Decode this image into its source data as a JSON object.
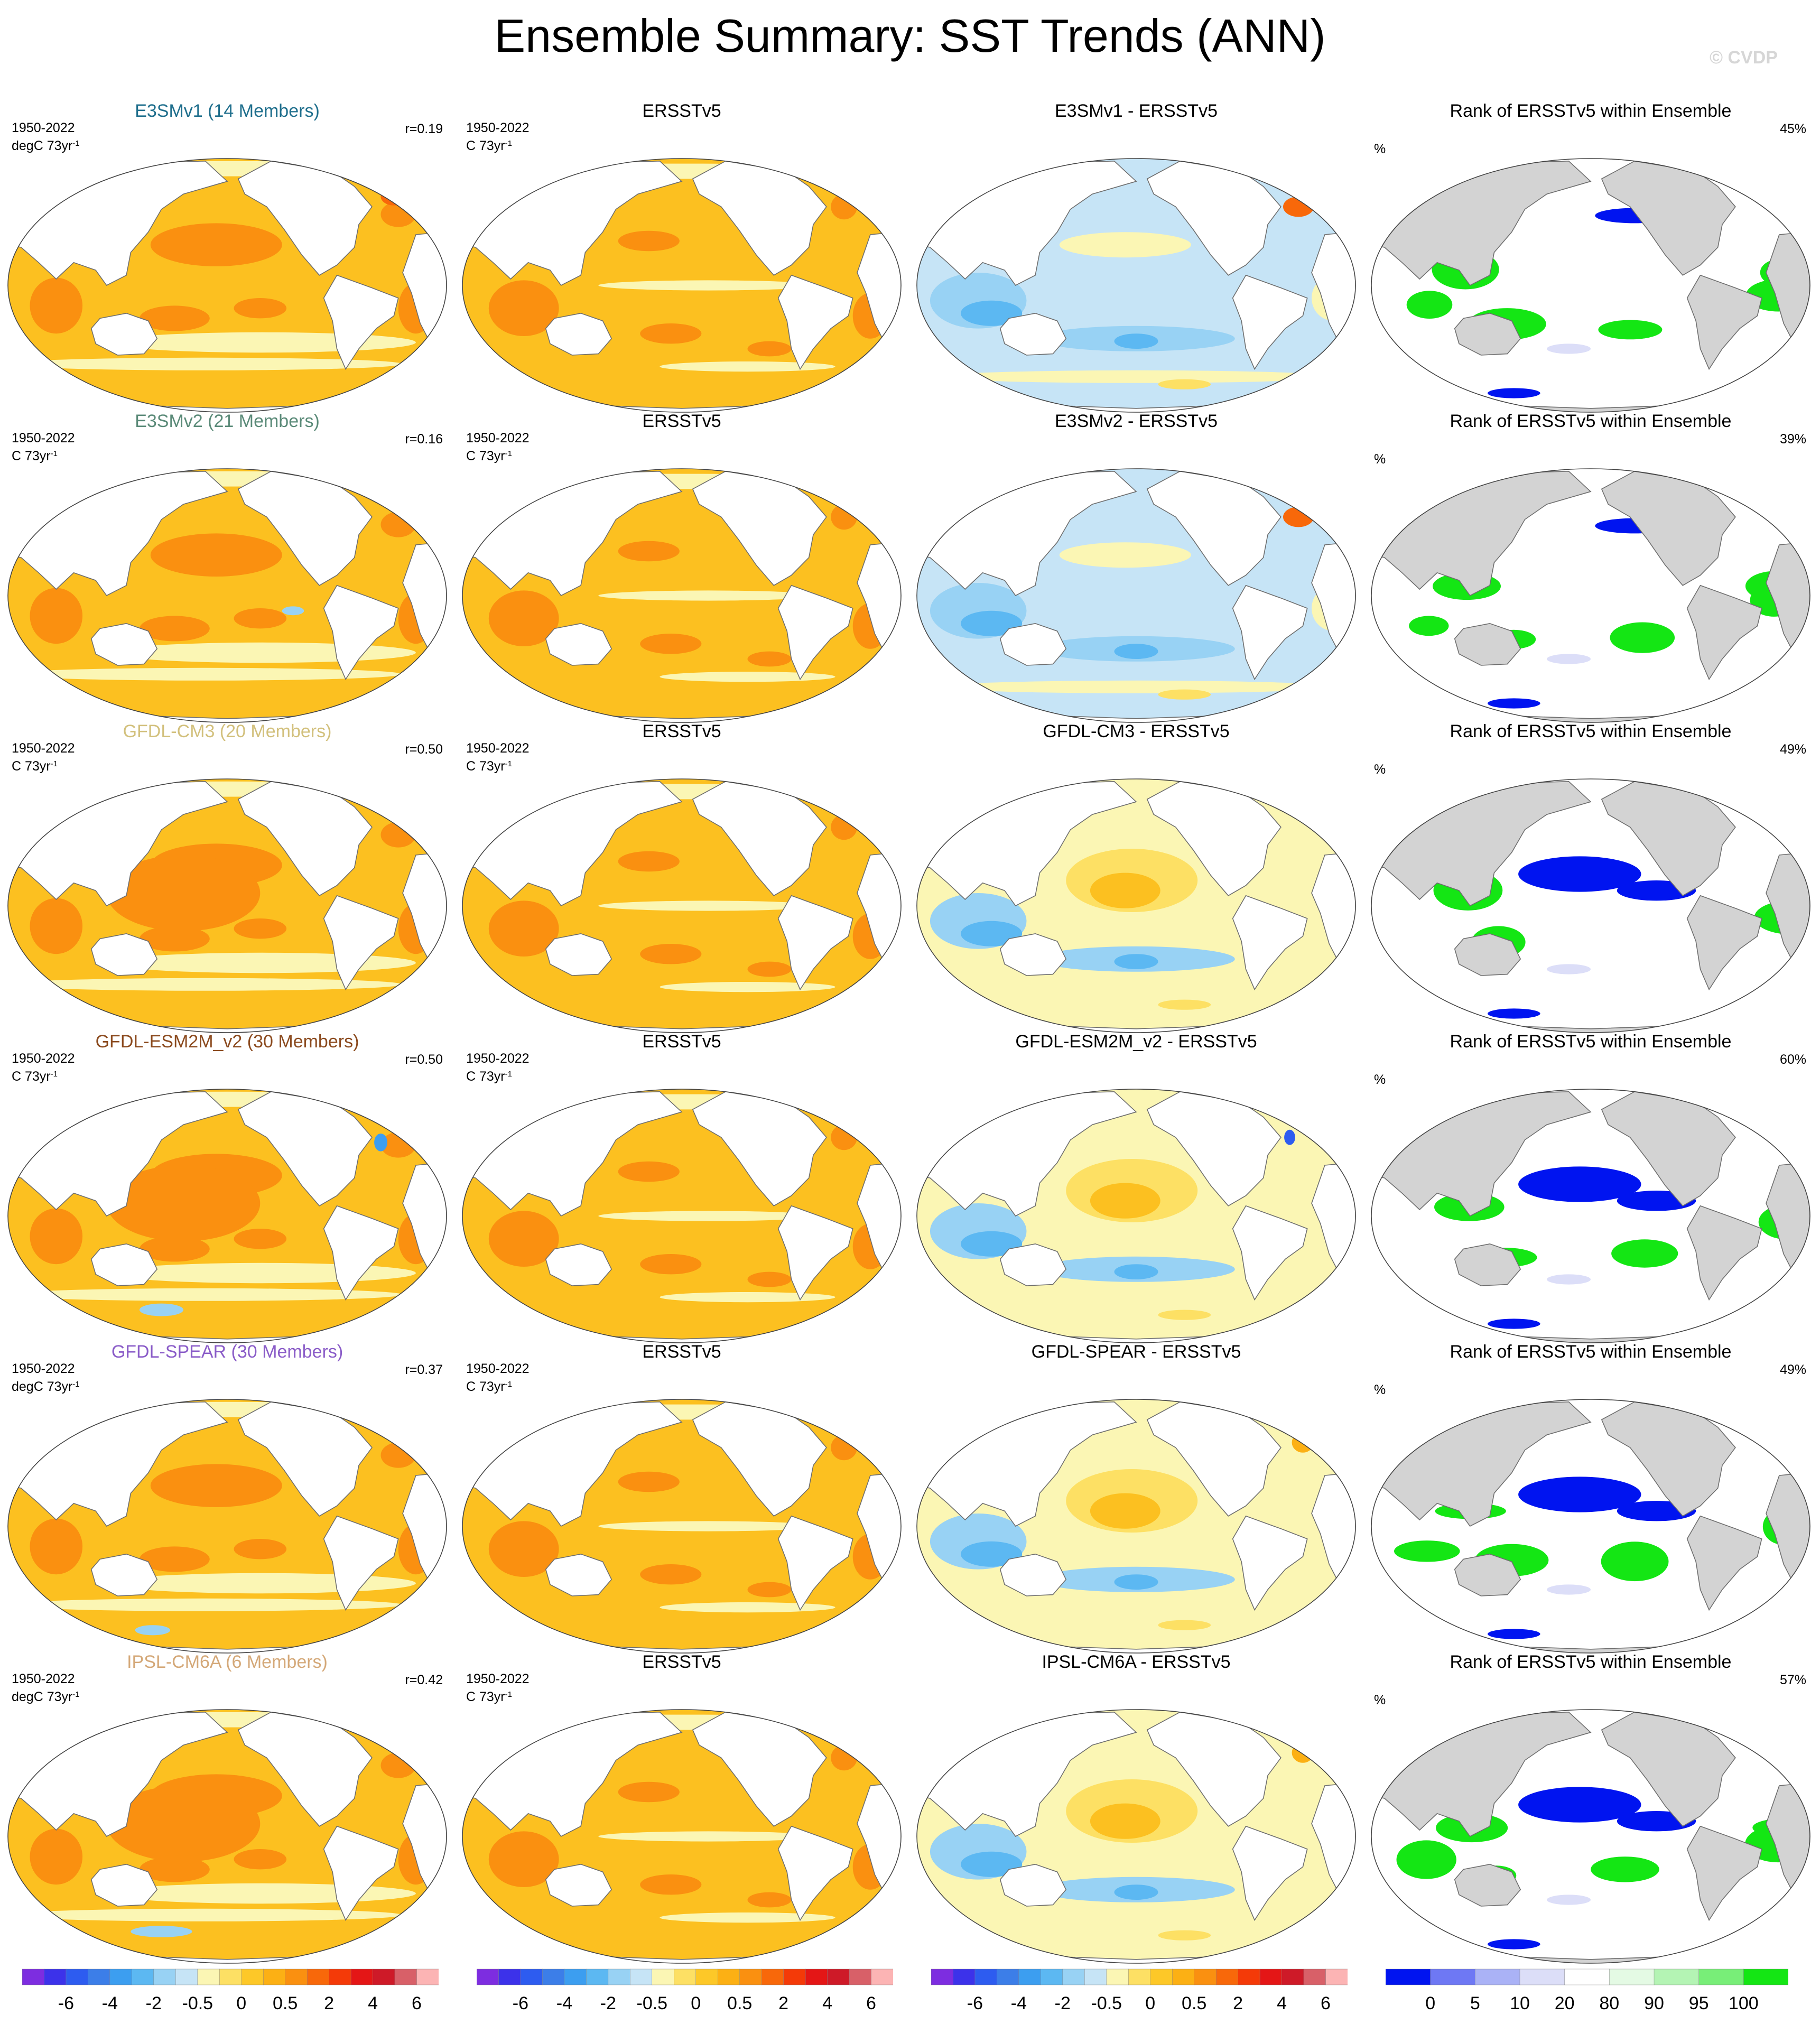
{
  "title": "Ensemble Summary: SST Trends (ANN)",
  "credit": "© CVDP",
  "rows": [
    {
      "model": "E3SMv1 (14 Members)",
      "model_color": "#1e6e8c",
      "units": "degC 73yr",
      "r": "r=0.19",
      "diff": "E3SMv1 - ERSSTv5",
      "rank_pct": "45%",
      "variant": 1
    },
    {
      "model": "E3SMv2 (21 Members)",
      "model_color": "#5a8a78",
      "units": "C 73yr",
      "r": "r=0.16",
      "diff": "E3SMv2 - ERSSTv5",
      "rank_pct": "39%",
      "variant": 2
    },
    {
      "model": "GFDL-CM3 (20 Members)",
      "model_color": "#d2c07c",
      "units": "C 73yr",
      "r": "r=0.50",
      "diff": "GFDL-CM3 - ERSSTv5",
      "rank_pct": "49%",
      "variant": 3
    },
    {
      "model": "GFDL-ESM2M_v2 (30 Members)",
      "model_color": "#8b4a1e",
      "units": "C 73yr",
      "r": "r=0.50",
      "diff": "GFDL-ESM2M_v2 - ERSSTv5",
      "rank_pct": "60%",
      "variant": 4
    },
    {
      "model": "GFDL-SPEAR (30 Members)",
      "model_color": "#8a5cc8",
      "units": "degC 73yr",
      "r": "r=0.37",
      "diff": "GFDL-SPEAR - ERSSTv5",
      "rank_pct": "49%",
      "variant": 5
    },
    {
      "model": "IPSL-CM6A (6 Members)",
      "model_color": "#d4a878",
      "units": "degC 73yr",
      "r": "r=0.42",
      "diff": "IPSL-CM6A - ERSSTv5",
      "rank_pct": "57%",
      "variant": 6
    }
  ],
  "common": {
    "period": "1950-2022",
    "units_exp": "-1",
    "obs_title": "ERSSTv5",
    "obs_units": "C 73yr",
    "rank_title": "Rank of ERSSTv5 within Ensemble",
    "pct_sign": "%"
  },
  "colorbar_trend": {
    "colors": [
      "#7d2de0",
      "#3c32ea",
      "#2d5cf0",
      "#3c7ee8",
      "#3c9ef0",
      "#5cb8f2",
      "#98d2f4",
      "#c6e4f6",
      "#fbf6b4",
      "#fde064",
      "#fdc828",
      "#fcb014",
      "#fa9010",
      "#f8680a",
      "#f43a08",
      "#e41616",
      "#ce1a28",
      "#d86068",
      "#fcb4b4"
    ],
    "ticks": [
      "-6",
      "-4",
      "-2",
      "-0.5",
      "0",
      "0.5",
      "2",
      "4",
      "6"
    ]
  },
  "colorbar_rank": {
    "colors": [
      "#0014f0",
      "#6e78f4",
      "#aab2f6",
      "#dcdef8",
      "#ffffff",
      "#e4fae4",
      "#b4f4b4",
      "#78ee78",
      "#14e614"
    ],
    "ticks": [
      "0",
      "5",
      "10",
      "20",
      "80",
      "90",
      "95",
      "100"
    ]
  }
}
